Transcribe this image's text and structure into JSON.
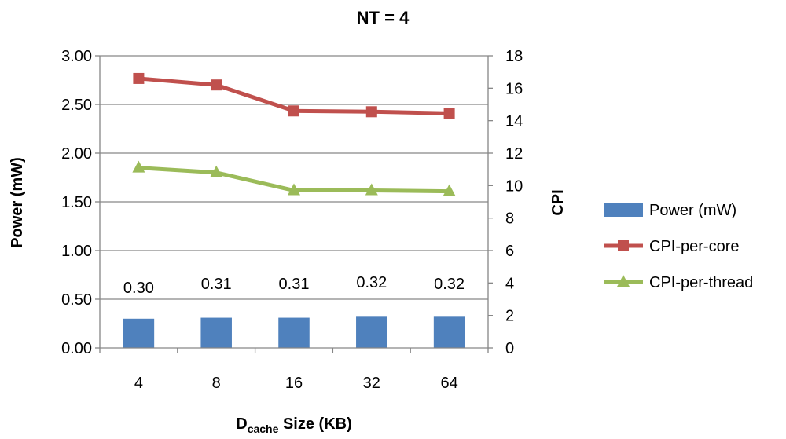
{
  "chart_data": {
    "type": "bar",
    "title": "NT = 4",
    "xlabel": {
      "main": "D",
      "subscript": "cache",
      "rest": " Size (KB)"
    },
    "ylabel": "Power (mW)",
    "y2label": "CPI",
    "categories": [
      "4",
      "8",
      "16",
      "32",
      "64"
    ],
    "ylim": [
      0,
      3.0
    ],
    "yticks": [
      "0.00",
      "0.50",
      "1.00",
      "1.50",
      "2.00",
      "2.50",
      "3.00"
    ],
    "y2lim": [
      0,
      18
    ],
    "y2ticks": [
      "0",
      "2",
      "4",
      "6",
      "8",
      "10",
      "12",
      "14",
      "16",
      "18"
    ],
    "grid": true,
    "legend_position": "right",
    "series": [
      {
        "name": "Power (mW)",
        "type": "bar",
        "axis": "left",
        "color": "#4F81BD",
        "values": [
          0.3,
          0.31,
          0.31,
          0.32,
          0.32
        ],
        "labels": [
          "0.30",
          "0.31",
          "0.31",
          "0.32",
          "0.32"
        ]
      },
      {
        "name": "CPI-per-core",
        "type": "line",
        "axis": "right",
        "color": "#C0504D",
        "marker": "square",
        "values": [
          16.6,
          16.2,
          14.6,
          14.55,
          14.45
        ]
      },
      {
        "name": "CPI-per-thread",
        "type": "line",
        "axis": "right",
        "color": "#9BBB59",
        "marker": "triangle",
        "values": [
          11.1,
          10.8,
          9.7,
          9.7,
          9.65
        ]
      }
    ]
  }
}
